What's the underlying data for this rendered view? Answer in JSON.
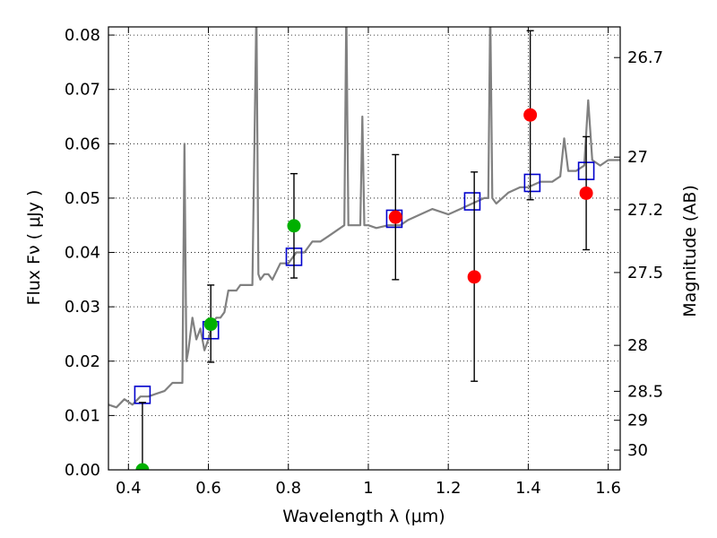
{
  "chart_data": {
    "type": "scatter",
    "xlabel": "Wavelength  λ (μm)",
    "ylabel": "Flux  Fν  ( μJy )",
    "y2label": "Magnitude (AB)",
    "xlim": [
      0.35,
      1.63
    ],
    "ylim": [
      0.0,
      0.0815
    ],
    "grid": true,
    "x_ticks": [
      {
        "value": 0.4,
        "label": "0.4"
      },
      {
        "value": 0.6,
        "label": "0.6"
      },
      {
        "value": 0.8,
        "label": "0.8"
      },
      {
        "value": 1.0,
        "label": "1"
      },
      {
        "value": 1.2,
        "label": "1.2"
      },
      {
        "value": 1.4,
        "label": "1.4"
      },
      {
        "value": 1.6,
        "label": "1.6"
      }
    ],
    "y_ticks": [
      {
        "value": 0.0,
        "label": "0.00"
      },
      {
        "value": 0.01,
        "label": "0.01"
      },
      {
        "value": 0.02,
        "label": "0.02"
      },
      {
        "value": 0.03,
        "label": "0.03"
      },
      {
        "value": 0.04,
        "label": "0.04"
      },
      {
        "value": 0.05,
        "label": "0.05"
      },
      {
        "value": 0.06,
        "label": "0.06"
      },
      {
        "value": 0.07,
        "label": "0.07"
      },
      {
        "value": 0.08,
        "label": "0.08"
      }
    ],
    "y2_ticks": [
      {
        "value": 26.7,
        "label": "26.7"
      },
      {
        "value": 27.0,
        "label": "27"
      },
      {
        "value": 27.2,
        "label": "27.2"
      },
      {
        "value": 27.5,
        "label": "27.5"
      },
      {
        "value": 28.0,
        "label": "28"
      },
      {
        "value": 28.5,
        "label": "28.5"
      },
      {
        "value": 29.0,
        "label": "29"
      },
      {
        "value": 30.0,
        "label": "30"
      }
    ],
    "series": [
      {
        "kind": "line",
        "color": "#808080",
        "x": [
          0.35,
          0.37,
          0.39,
          0.41,
          0.43,
          0.45,
          0.47,
          0.49,
          0.51,
          0.53,
          0.535,
          0.54,
          0.545,
          0.55,
          0.56,
          0.57,
          0.58,
          0.59,
          0.6,
          0.61,
          0.62,
          0.63,
          0.64,
          0.65,
          0.66,
          0.67,
          0.68,
          0.69,
          0.7,
          0.71,
          0.72,
          0.725,
          0.73,
          0.74,
          0.75,
          0.76,
          0.78,
          0.8,
          0.82,
          0.84,
          0.86,
          0.88,
          0.9,
          0.92,
          0.94,
          0.945,
          0.95,
          0.96,
          0.98,
          0.985,
          0.99,
          1.0,
          1.02,
          1.05,
          1.08,
          1.1,
          1.13,
          1.16,
          1.2,
          1.23,
          1.26,
          1.29,
          1.3,
          1.305,
          1.31,
          1.32,
          1.35,
          1.38,
          1.4,
          1.43,
          1.46,
          1.48,
          1.49,
          1.5,
          1.52,
          1.54,
          1.55,
          1.56,
          1.58,
          1.6,
          1.63
        ],
        "y": [
          0.012,
          0.0115,
          0.013,
          0.012,
          0.0135,
          0.0135,
          0.014,
          0.0145,
          0.016,
          0.016,
          0.016,
          0.06,
          0.02,
          0.022,
          0.028,
          0.024,
          0.026,
          0.022,
          0.024,
          0.027,
          0.028,
          0.028,
          0.029,
          0.033,
          0.033,
          0.033,
          0.034,
          0.034,
          0.034,
          0.034,
          0.085,
          0.036,
          0.035,
          0.036,
          0.036,
          0.035,
          0.038,
          0.038,
          0.04,
          0.04,
          0.042,
          0.042,
          0.043,
          0.044,
          0.045,
          0.085,
          0.045,
          0.045,
          0.045,
          0.065,
          0.045,
          0.045,
          0.0445,
          0.045,
          0.045,
          0.046,
          0.047,
          0.048,
          0.047,
          0.048,
          0.049,
          0.05,
          0.05,
          0.085,
          0.05,
          0.049,
          0.051,
          0.052,
          0.052,
          0.053,
          0.053,
          0.054,
          0.061,
          0.055,
          0.055,
          0.056,
          0.068,
          0.057,
          0.056,
          0.057,
          0.057
        ]
      },
      {
        "kind": "model-photometry",
        "color": "#0000cc",
        "marker": "square",
        "points": [
          {
            "x": 0.435,
            "y": 0.0138
          },
          {
            "x": 0.606,
            "y": 0.0257
          },
          {
            "x": 0.814,
            "y": 0.0392
          },
          {
            "x": 1.065,
            "y": 0.0462
          },
          {
            "x": 1.26,
            "y": 0.0494
          },
          {
            "x": 1.41,
            "y": 0.0528
          },
          {
            "x": 1.545,
            "y": 0.055
          }
        ]
      },
      {
        "kind": "observed-green",
        "color": "#00b000",
        "marker": "circle",
        "points": [
          {
            "x": 0.435,
            "y": 0.0,
            "err_low": 0.0,
            "err_high": 0.0124
          },
          {
            "x": 0.606,
            "y": 0.0268,
            "err_low": 0.0198,
            "err_high": 0.034
          },
          {
            "x": 0.814,
            "y": 0.0449,
            "err_low": 0.0353,
            "err_high": 0.0545
          }
        ]
      },
      {
        "kind": "observed-red",
        "color": "#ff0000",
        "marker": "circle",
        "points": [
          {
            "x": 1.068,
            "y": 0.0465,
            "err_low": 0.035,
            "err_high": 0.058
          },
          {
            "x": 1.265,
            "y": 0.0355,
            "err_low": 0.0163,
            "err_high": 0.0548
          },
          {
            "x": 1.405,
            "y": 0.0653,
            "err_low": 0.0497,
            "err_high": 0.0808
          },
          {
            "x": 1.545,
            "y": 0.0509,
            "err_low": 0.0405,
            "err_high": 0.0613
          }
        ]
      }
    ]
  }
}
